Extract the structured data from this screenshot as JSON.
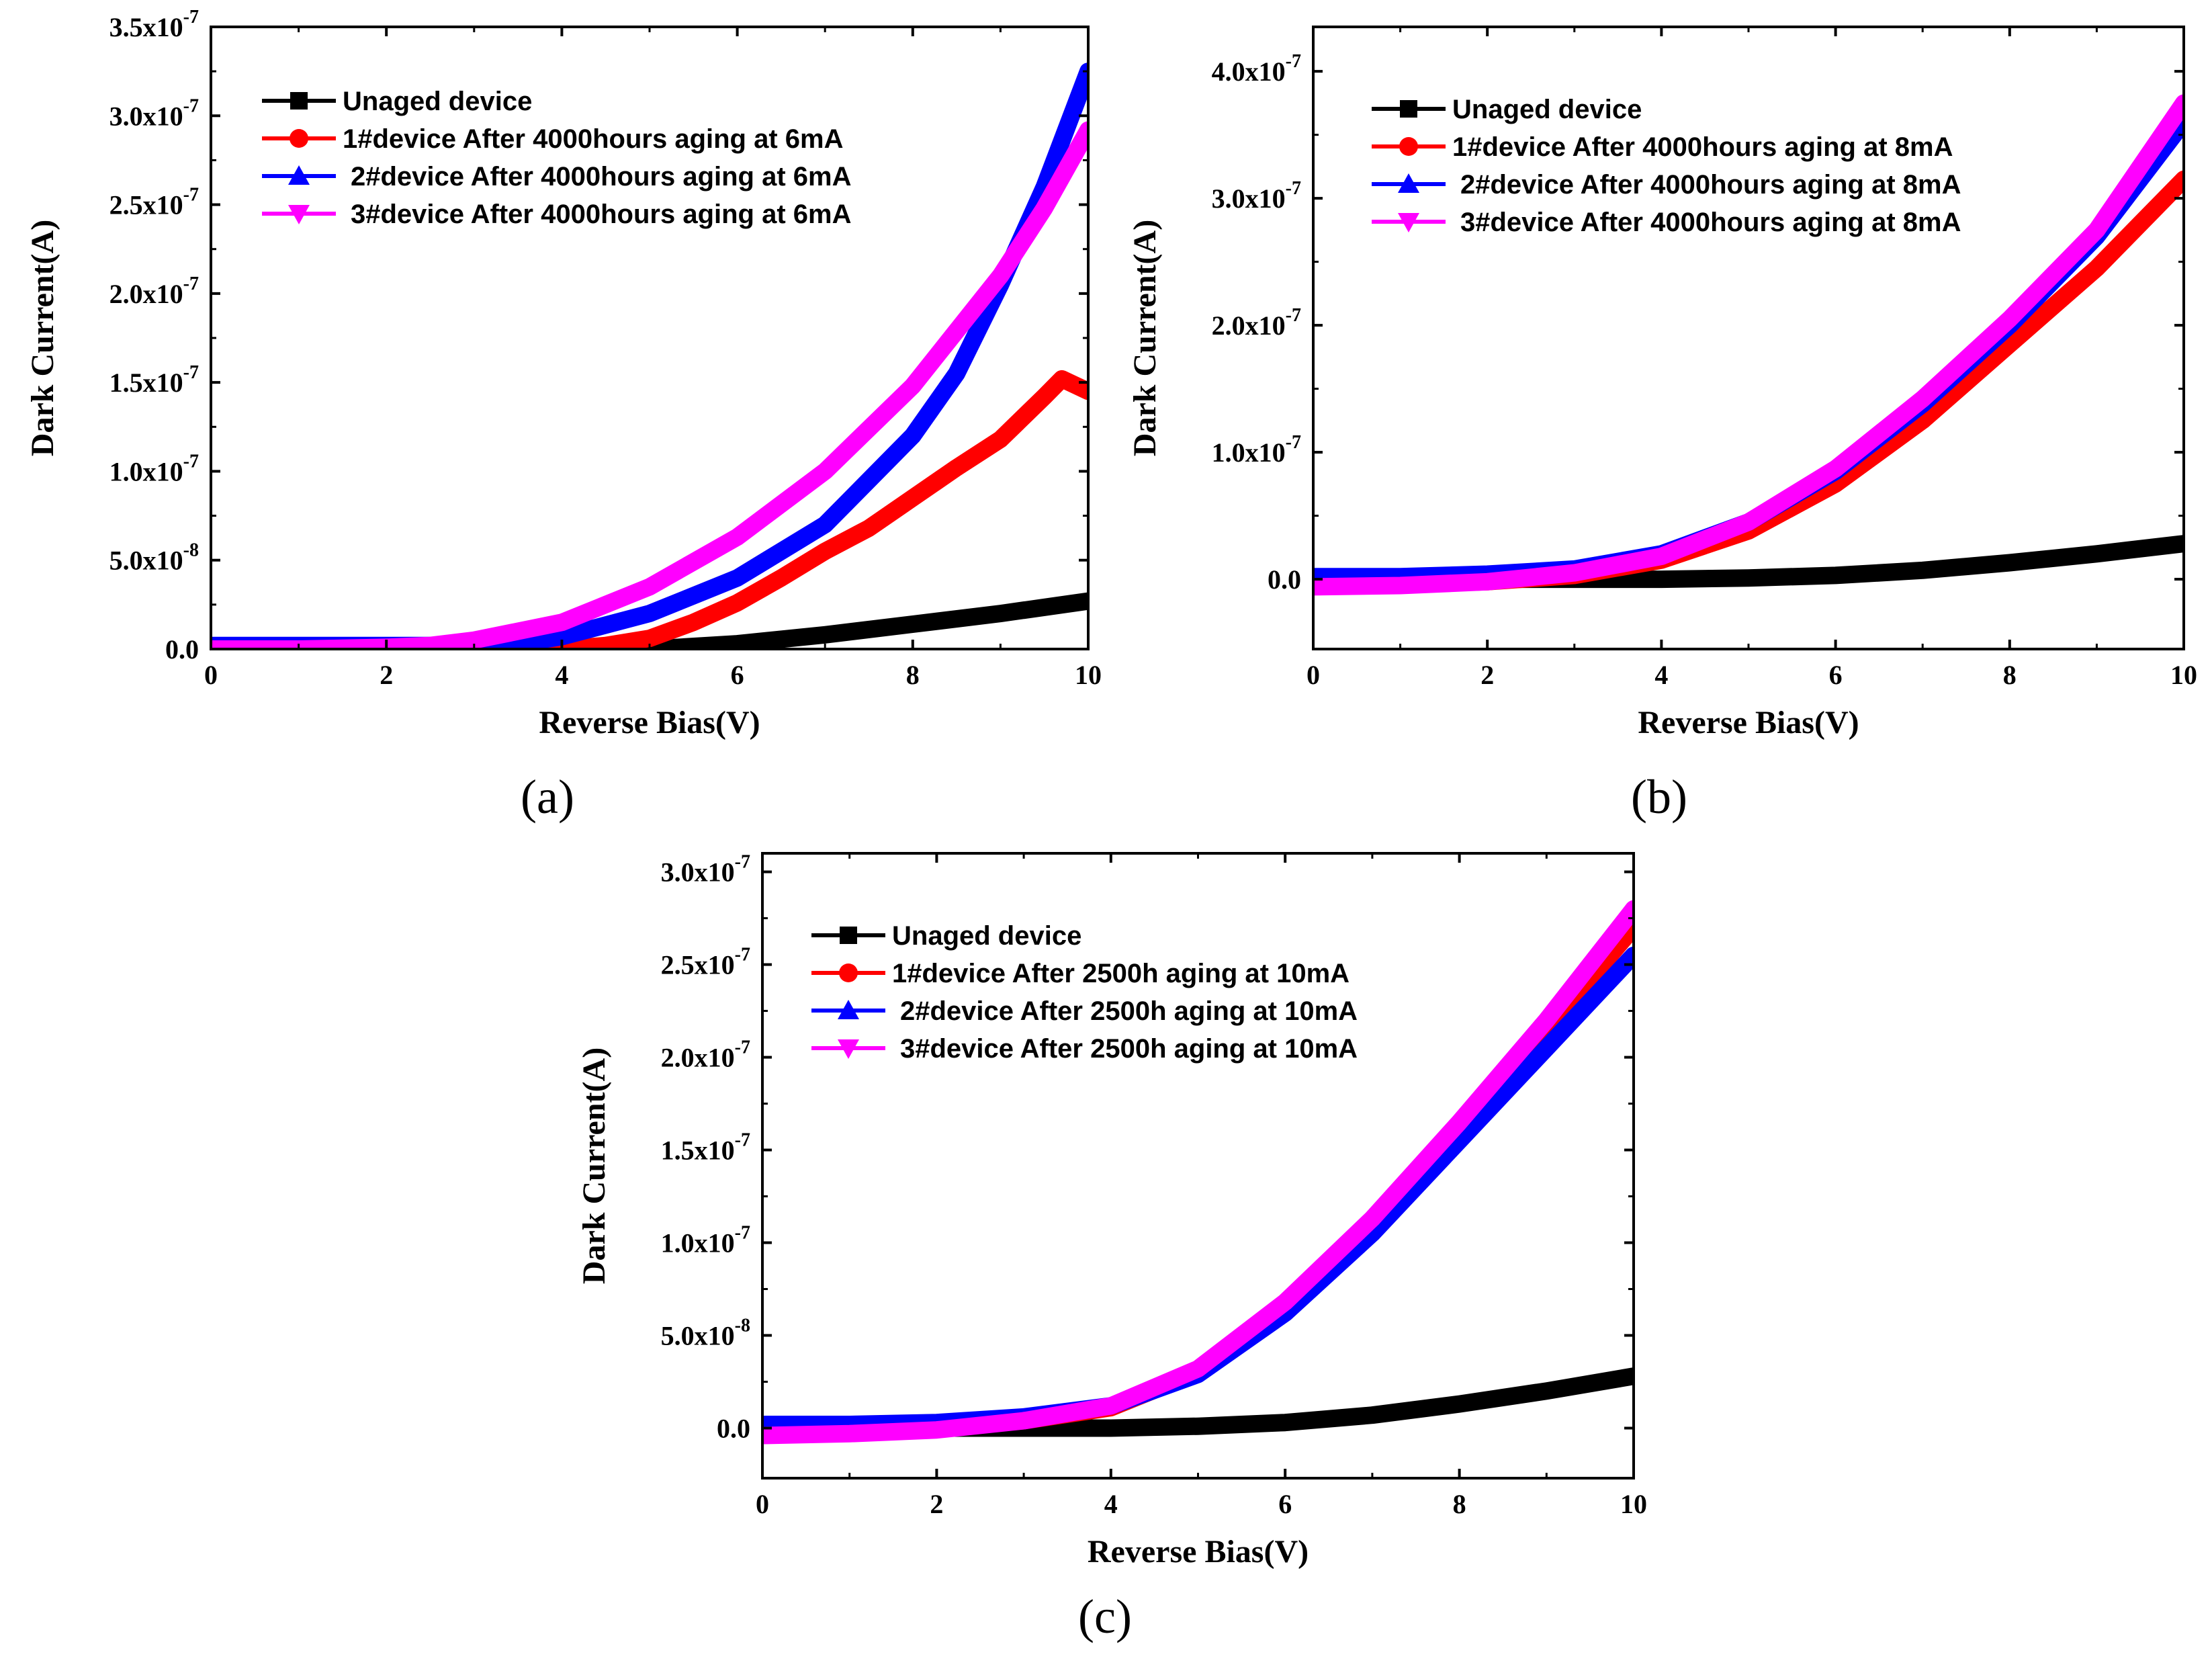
{
  "figure": {
    "captions": [
      "(a)",
      "(b)",
      "(c)"
    ]
  },
  "chart_data": [
    {
      "id": "a",
      "type": "line",
      "caption": "(a)",
      "xlabel": "Reverse Bias(V)",
      "ylabel": "Dark Current(A)",
      "xlim": [
        0,
        10
      ],
      "ylim": [
        0,
        3.5e-07
      ],
      "xticks": [
        0,
        2,
        4,
        6,
        8,
        10
      ],
      "xtick_labels": [
        "0",
        "2",
        "4",
        "6",
        "8",
        "10"
      ],
      "yticks": [
        0,
        5e-08,
        1e-07,
        1.5e-07,
        2e-07,
        2.5e-07,
        3e-07,
        3.5e-07
      ],
      "ytick_labels": [
        {
          "mant": "0.0",
          "exp": ""
        },
        {
          "mant": "5.0x10",
          "exp": "-8"
        },
        {
          "mant": "1.0x10",
          "exp": "-7"
        },
        {
          "mant": "1.5x10",
          "exp": "-7"
        },
        {
          "mant": "2.0x10",
          "exp": "-7"
        },
        {
          "mant": "2.5x10",
          "exp": "-7"
        },
        {
          "mant": "3.0x10",
          "exp": "-7"
        },
        {
          "mant": "3.5x10",
          "exp": "-7"
        }
      ],
      "legend_position": "top-left",
      "series": [
        {
          "name": "Unaged device",
          "color": "#000000",
          "marker": "square",
          "x": [
            0,
            2,
            4,
            5,
            6,
            7,
            8,
            9,
            10
          ],
          "y": [
            0,
            0,
            0,
            0,
            3e-09,
            8e-09,
            1.4e-08,
            2e-08,
            2.7e-08
          ]
        },
        {
          "name": "1#device After 4000hours aging at 6mA",
          "color": "#ff0000",
          "marker": "circle",
          "x": [
            0,
            2,
            4,
            4.5,
            5,
            5.5,
            6,
            6.5,
            7,
            7.5,
            8,
            8.5,
            9,
            9.5,
            9.7,
            10
          ],
          "y": [
            0,
            0,
            0,
            2e-09,
            6e-09,
            1.5e-08,
            2.6e-08,
            4e-08,
            5.5e-08,
            6.8e-08,
            8.5e-08,
            1.02e-07,
            1.18e-07,
            1.42e-07,
            1.52e-07,
            1.45e-07
          ]
        },
        {
          "name": "2#device After 4000hours aging at 6mA",
          "color": "#0000ff",
          "marker": "triangle-up",
          "x": [
            0,
            2,
            3,
            3.5,
            4,
            5,
            6,
            7,
            8,
            8.5,
            9,
            9.5,
            10
          ],
          "y": [
            2e-09,
            2e-09,
            2e-09,
            3e-09,
            7e-09,
            2e-08,
            4e-08,
            7e-08,
            1.2e-07,
            1.55e-07,
            2.05e-07,
            2.6e-07,
            3.25e-07
          ]
        },
        {
          "name": "3#device After 4000hours aging at 6mA",
          "color": "#ff00ff",
          "marker": "triangle-down",
          "x": [
            0,
            1,
            2,
            2.5,
            3,
            4,
            5,
            6,
            7,
            8,
            9,
            9.5,
            10
          ],
          "y": [
            0,
            0,
            1e-09,
            2e-09,
            5e-09,
            1.5e-08,
            3.5e-08,
            6.3e-08,
            1e-07,
            1.48e-07,
            2.1e-07,
            2.48e-07,
            2.92e-07
          ]
        }
      ]
    },
    {
      "id": "b",
      "type": "line",
      "caption": "(b)",
      "xlabel": "Reverse Bias(V)",
      "ylabel": "Dark Current(A)",
      "xlim": [
        0,
        10
      ],
      "ylim": [
        -5.5e-08,
        4.35e-07
      ],
      "xticks": [
        0,
        2,
        4,
        6,
        8,
        10
      ],
      "xtick_labels": [
        "0",
        "2",
        "4",
        "6",
        "8",
        "10"
      ],
      "yticks": [
        0,
        1e-07,
        2e-07,
        3e-07,
        4e-07
      ],
      "ytick_labels": [
        {
          "mant": "0.0",
          "exp": ""
        },
        {
          "mant": "1.0x10",
          "exp": "-7"
        },
        {
          "mant": "2.0x10",
          "exp": "-7"
        },
        {
          "mant": "3.0x10",
          "exp": "-7"
        },
        {
          "mant": "4.0x10",
          "exp": "-7"
        }
      ],
      "legend_position": "top-left",
      "series": [
        {
          "name": "Unaged device",
          "color": "#000000",
          "marker": "square",
          "x": [
            0,
            2,
            4,
            5,
            6,
            7,
            8,
            9,
            10
          ],
          "y": [
            0,
            0,
            0,
            1e-09,
            3e-09,
            7e-09,
            1.3e-08,
            2e-08,
            2.8e-08
          ]
        },
        {
          "name": "1#device After 4000hours aging at 8mA",
          "color": "#ff0000",
          "marker": "circle",
          "x": [
            0,
            1,
            2,
            3,
            4,
            5,
            6,
            7,
            8,
            9,
            10
          ],
          "y": [
            -5e-09,
            -4e-09,
            -2e-09,
            3e-09,
            1.5e-08,
            3.8e-08,
            7.5e-08,
            1.25e-07,
            1.85e-07,
            2.45e-07,
            3.15e-07
          ]
        },
        {
          "name": "2#device After 4000hours aging at 8mA",
          "color": "#0000ff",
          "marker": "triangle-up",
          "x": [
            0,
            1,
            2,
            3,
            4,
            5,
            6,
            7,
            8,
            9,
            10
          ],
          "y": [
            2e-09,
            2e-09,
            4e-09,
            8e-09,
            2e-08,
            4.5e-08,
            8.5e-08,
            1.38e-07,
            2e-07,
            2.7e-07,
            3.6e-07
          ]
        },
        {
          "name": "3#device After 4000hours aging at 8mA",
          "color": "#ff00ff",
          "marker": "triangle-down",
          "x": [
            0,
            1,
            2,
            3,
            4,
            5,
            6,
            7,
            8,
            9,
            10
          ],
          "y": [
            -6e-09,
            -5e-09,
            -2e-09,
            5e-09,
            1.8e-08,
            4.5e-08,
            8.7e-08,
            1.42e-07,
            2.05e-07,
            2.75e-07,
            3.75e-07
          ]
        }
      ]
    },
    {
      "id": "c",
      "type": "line",
      "caption": "(c)",
      "xlabel": "Reverse Bias(V)",
      "ylabel": "Dark Current(A)",
      "xlim": [
        0,
        10
      ],
      "ylim": [
        -2.7e-08,
        3.1e-07
      ],
      "xticks": [
        0,
        2,
        4,
        6,
        8,
        10
      ],
      "xtick_labels": [
        "0",
        "2",
        "4",
        "6",
        "8",
        "10"
      ],
      "yticks": [
        0,
        5e-08,
        1e-07,
        1.5e-07,
        2e-07,
        2.5e-07,
        3e-07
      ],
      "ytick_labels": [
        {
          "mant": "0.0",
          "exp": ""
        },
        {
          "mant": "5.0x10",
          "exp": "-8"
        },
        {
          "mant": "1.0x10",
          "exp": "-7"
        },
        {
          "mant": "1.5x10",
          "exp": "-7"
        },
        {
          "mant": "2.0x10",
          "exp": "-7"
        },
        {
          "mant": "2.5x10",
          "exp": "-7"
        },
        {
          "mant": "3.0x10",
          "exp": "-7"
        }
      ],
      "legend_position": "top-left",
      "series": [
        {
          "name": "Unaged device",
          "color": "#000000",
          "marker": "square",
          "x": [
            0,
            2,
            4,
            5,
            6,
            7,
            8,
            9,
            10
          ],
          "y": [
            0,
            0,
            0,
            1e-09,
            3e-09,
            7e-09,
            1.3e-08,
            2e-08,
            2.8e-08
          ]
        },
        {
          "name": "1#device After 2500h aging at 10mA",
          "color": "#ff0000",
          "marker": "circle",
          "x": [
            0,
            1,
            2,
            3,
            4,
            5,
            6,
            7,
            8,
            9,
            10
          ],
          "y": [
            -3e-09,
            -2e-09,
            0,
            4e-09,
            1.1e-08,
            3e-08,
            6.5e-08,
            1.1e-07,
            1.6e-07,
            2.15e-07,
            2.7e-07
          ]
        },
        {
          "name": "2#device After 2500h aging at 10mA",
          "color": "#0000ff",
          "marker": "triangle-up",
          "x": [
            0,
            1,
            2,
            3,
            4,
            5,
            6,
            7,
            8,
            9,
            10
          ],
          "y": [
            2e-09,
            2e-09,
            3e-09,
            6e-09,
            1.2e-08,
            2.9e-08,
            6.2e-08,
            1.05e-07,
            1.55e-07,
            2.05e-07,
            2.55e-07
          ]
        },
        {
          "name": "3#device After 2500h aging at 10mA",
          "color": "#ff00ff",
          "marker": "triangle-down",
          "x": [
            0,
            1,
            2,
            3,
            4,
            5,
            6,
            7,
            8,
            9,
            10
          ],
          "y": [
            -4e-09,
            -3e-09,
            -1e-09,
            4e-09,
            1.2e-08,
            3.2e-08,
            6.8e-08,
            1.13e-07,
            1.65e-07,
            2.2e-07,
            2.8e-07
          ]
        }
      ]
    }
  ]
}
